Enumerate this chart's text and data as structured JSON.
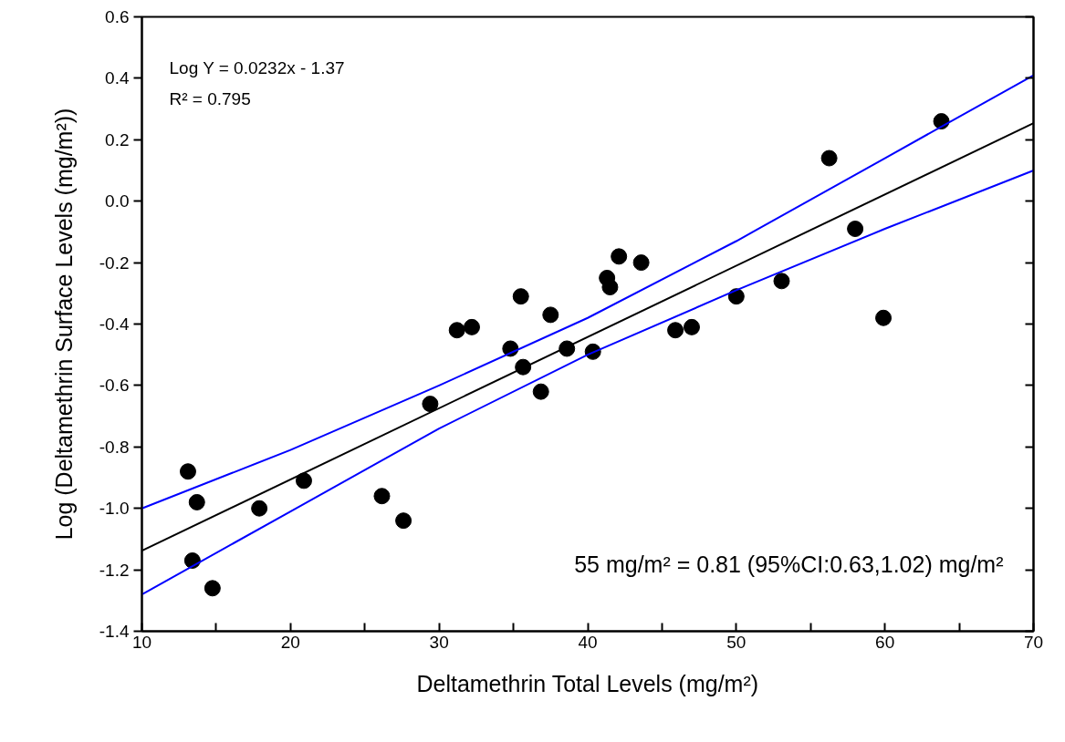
{
  "chart_data": {
    "type": "scatter",
    "xlabel": "Deltamethrin Total Levels (mg/m²)",
    "ylabel": "Log (Deltamethrin Surface Levels (mg/m²))",
    "annotations": [
      "Log Y = 0.0232x - 1.37",
      "R² = 0.795",
      "55 mg/m² = 0.81 (95%CI:0.63,1.02) mg/m²"
    ],
    "xlim": [
      10,
      70
    ],
    "xticks": [
      10,
      {
        "value": 15,
        "label": null
      },
      20,
      {
        "value": 25,
        "label": null
      },
      30,
      {
        "value": 35,
        "label": null
      },
      40,
      {
        "value": 45,
        "label": null
      },
      50,
      {
        "value": 55,
        "label": null
      },
      60,
      {
        "value": 65,
        "label": null
      },
      70
    ],
    "ylim": [
      -1.4,
      0.6
    ],
    "yticks": [
      -1.4,
      -1.2,
      {
        "value": -1.0,
        "label": "-1.0"
      },
      -0.8,
      -0.6,
      -0.4,
      -0.2,
      {
        "value": 0,
        "label": "0.0"
      },
      0.2,
      0.4,
      0.6
    ],
    "grid": false,
    "series": [
      {
        "marker": "circle",
        "color": "#000000",
        "x": [
          13.1,
          13.7,
          13.4,
          14.75,
          17.9,
          20.9,
          26.15,
          27.6,
          29.4,
          31.2,
          32.2,
          34.8,
          35.5,
          35.65,
          37.5,
          36.85,
          38.6,
          40.35,
          41.3,
          41.5,
          42.1,
          43.6,
          45.9,
          47.0,
          50.0,
          53.05,
          56.25,
          58.0,
          59.9,
          63.8
        ],
        "values": [
          -0.88,
          -0.98,
          -1.17,
          -1.26,
          -1.0,
          -0.91,
          -0.96,
          -1.04,
          -0.66,
          -0.42,
          -0.41,
          -0.48,
          -0.31,
          -0.54,
          -0.37,
          -0.62,
          -0.48,
          -0.49,
          -0.25,
          -0.28,
          -0.18,
          -0.2,
          -0.42,
          -0.41,
          -0.31,
          -0.26,
          0.14,
          -0.09,
          -0.38,
          0.26
        ]
      },
      {
        "type": "line",
        "color": "#000000",
        "x": [
          10,
          70
        ],
        "values": [
          -1.138,
          0.254
        ]
      },
      {
        "type": "line",
        "color": "#0000ff",
        "x": [
          10,
          20,
          30,
          40,
          50,
          60,
          70
        ],
        "values": [
          -1.0,
          -0.81,
          -0.6,
          -0.38,
          -0.13,
          0.14,
          0.41
        ]
      },
      {
        "type": "line",
        "color": "#0000ff",
        "x": [
          10,
          20,
          30,
          40,
          50,
          60,
          70
        ],
        "values": [
          -1.28,
          -1.01,
          -0.74,
          -0.5,
          -0.29,
          -0.09,
          0.1
        ]
      }
    ]
  }
}
